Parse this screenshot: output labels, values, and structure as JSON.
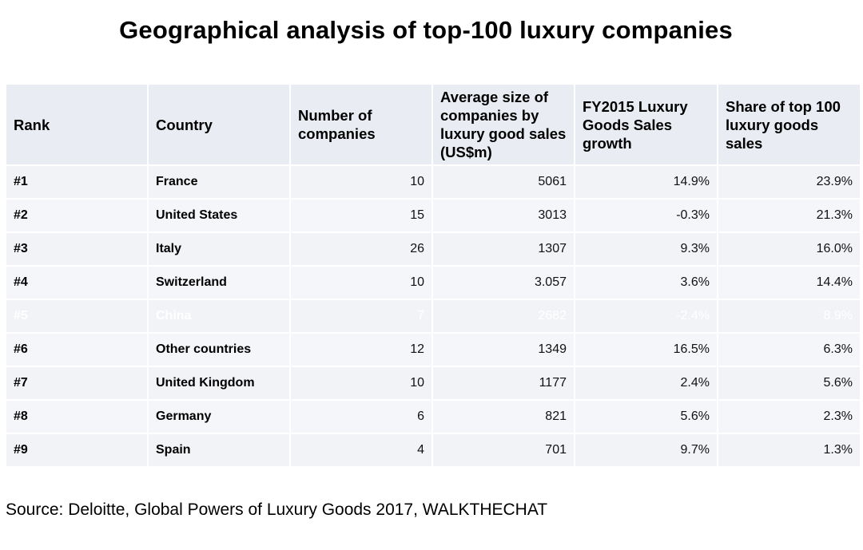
{
  "title": "Geographical analysis of top-100 luxury companies",
  "table": {
    "headers": [
      "Rank",
      "Country",
      "Number of companies",
      "Average size of companies by luxury good sales (US$m)",
      "FY2015 Luxury Goods Sales growth",
      "Share of top 100 luxury goods sales"
    ],
    "rows": [
      {
        "rank": "#1",
        "country": "France",
        "companies": "10",
        "avg_size": "5061",
        "growth": "14.9%",
        "share": "23.9%"
      },
      {
        "rank": "#2",
        "country": "United States",
        "companies": "15",
        "avg_size": "3013",
        "growth": "-0.3%",
        "share": "21.3%"
      },
      {
        "rank": "#3",
        "country": "Italy",
        "companies": "26",
        "avg_size": "1307",
        "growth": "9.3%",
        "share": "16.0%"
      },
      {
        "rank": "#4",
        "country": "Switzerland",
        "companies": "10",
        "avg_size": "3.057",
        "growth": "3.6%",
        "share": "14.4%"
      },
      {
        "rank": "#5",
        "country": "China",
        "companies": "7",
        "avg_size": "2682",
        "growth": "-2.4%",
        "share": "8.9%"
      },
      {
        "rank": "#6",
        "country": "Other countries",
        "companies": "12",
        "avg_size": "1349",
        "growth": "16.5%",
        "share": "6.3%"
      },
      {
        "rank": "#7",
        "country": "United Kingdom",
        "companies": "10",
        "avg_size": "1177",
        "growth": "2.4%",
        "share": "5.6%"
      },
      {
        "rank": "#8",
        "country": "Germany",
        "companies": "6",
        "avg_size": "821",
        "growth": "5.6%",
        "share": "2.3%"
      },
      {
        "rank": "#9",
        "country": "Spain",
        "companies": "4",
        "avg_size": "701",
        "growth": "9.7%",
        "share": "1.3%"
      }
    ],
    "highlight_color": "#4b7fb3",
    "header_bg": "#e9ecf3",
    "row_bg": "#f2f3f7"
  },
  "source": "Source: Deloitte, Global Powers of Luxury Goods 2017, WALKTHECHAT"
}
